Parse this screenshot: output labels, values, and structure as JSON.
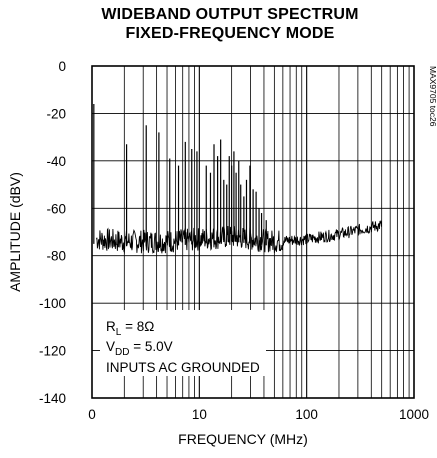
{
  "chart_data": {
    "type": "line",
    "title": [
      "WIDEBAND OUTPUT SPECTRUM",
      "FIXED-FREQUENCY MODE"
    ],
    "xlabel": "FREQUENCY (MHz)",
    "ylabel": "AMPLITUDE (dBV)",
    "x_scale": "log",
    "xlim": [
      1,
      1000
    ],
    "ylim": [
      -140,
      0
    ],
    "grid": true,
    "x_ticks": [
      {
        "value": 1,
        "label": "0"
      },
      {
        "value": 10,
        "label": "10"
      },
      {
        "value": 100,
        "label": "100"
      },
      {
        "value": 1000,
        "label": "1000"
      }
    ],
    "y_ticks": [
      0,
      -20,
      -40,
      -60,
      -80,
      -100,
      -120,
      -140
    ],
    "y_tick_labels": [
      "0",
      "-20",
      "-40",
      "-60",
      "-80",
      "-100",
      "-120",
      "-140"
    ],
    "noise_floor_dbv": [
      {
        "x": 1.1,
        "y": -73
      },
      {
        "x": 2,
        "y": -74
      },
      {
        "x": 5,
        "y": -74
      },
      {
        "x": 10,
        "y": -73
      },
      {
        "x": 20,
        "y": -72
      },
      {
        "x": 50,
        "y": -74
      },
      {
        "x": 100,
        "y": -73
      },
      {
        "x": 200,
        "y": -71
      },
      {
        "x": 500,
        "y": -67
      }
    ],
    "spurs": [
      {
        "x": 1.04,
        "y": -16
      },
      {
        "x": 2.1,
        "y": -33
      },
      {
        "x": 3.2,
        "y": -25
      },
      {
        "x": 4.2,
        "y": -28
      },
      {
        "x": 5.3,
        "y": -39
      },
      {
        "x": 6.4,
        "y": -42
      },
      {
        "x": 7.4,
        "y": -32
      },
      {
        "x": 8.5,
        "y": -35
      },
      {
        "x": 9.5,
        "y": -36
      },
      {
        "x": 11.6,
        "y": -42
      },
      {
        "x": 12.7,
        "y": -45
      },
      {
        "x": 13.7,
        "y": -33
      },
      {
        "x": 14.8,
        "y": -38
      },
      {
        "x": 15.8,
        "y": -31
      },
      {
        "x": 16.9,
        "y": -48
      },
      {
        "x": 18,
        "y": -50
      },
      {
        "x": 19,
        "y": -38
      },
      {
        "x": 20,
        "y": -42
      },
      {
        "x": 21,
        "y": -36
      },
      {
        "x": 22,
        "y": -45
      },
      {
        "x": 23.3,
        "y": -40
      },
      {
        "x": 24.3,
        "y": -50
      },
      {
        "x": 26,
        "y": -55
      },
      {
        "x": 27.5,
        "y": -48
      },
      {
        "x": 29.6,
        "y": -42
      },
      {
        "x": 31.7,
        "y": -52
      },
      {
        "x": 33.8,
        "y": -53
      },
      {
        "x": 36,
        "y": -60
      },
      {
        "x": 38,
        "y": -62
      },
      {
        "x": 42,
        "y": -65
      }
    ],
    "annotation": {
      "rl_prefix": "R",
      "rl_sub": "L",
      "rl_value": " = 8Ω",
      "vdd_prefix": "V",
      "vdd_sub": "DD",
      "vdd_value": " = 5.0V",
      "line3": "INPUTS AC GROUNDED"
    },
    "side_label": "MAX9705 toc26"
  }
}
